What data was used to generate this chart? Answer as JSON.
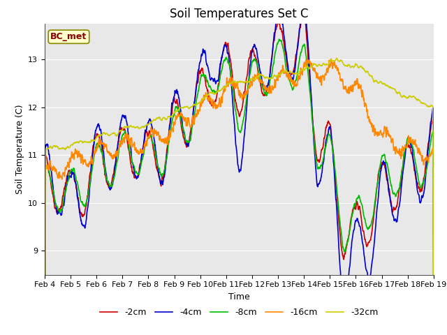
{
  "title": "Soil Temperatures Set C",
  "xlabel": "Time",
  "ylabel": "Soil Temperature (C)",
  "ylim": [
    8.5,
    13.75
  ],
  "xlim": [
    0,
    360
  ],
  "xtick_labels": [
    "Feb 4",
    "Feb 5",
    "Feb 6",
    "Feb 7",
    "Feb 8",
    "Feb 9",
    "Feb 10",
    "Feb 11",
    "Feb 12",
    "Feb 13",
    "Feb 14",
    "Feb 15",
    "Feb 16",
    "Feb 17",
    "Feb 18",
    "Feb 19"
  ],
  "xtick_positions": [
    0,
    24,
    48,
    72,
    96,
    120,
    144,
    168,
    192,
    216,
    240,
    264,
    288,
    312,
    336,
    360
  ],
  "legend_labels": [
    "-2cm",
    "-4cm",
    "-8cm",
    "-16cm",
    "-32cm"
  ],
  "line_colors": [
    "#cc0000",
    "#0000cc",
    "#00bb00",
    "#ff8800",
    "#cccc00"
  ],
  "line_widths": [
    1.2,
    1.2,
    1.2,
    1.2,
    1.2
  ],
  "background_color": "#ffffff",
  "plot_bg_color": "#e8e8e8",
  "annotation_text": "BC_met",
  "annotation_color": "#880000",
  "annotation_bg": "#ffffcc",
  "annotation_edge": "#888800",
  "title_fontsize": 12,
  "axis_fontsize": 9,
  "tick_fontsize": 8
}
